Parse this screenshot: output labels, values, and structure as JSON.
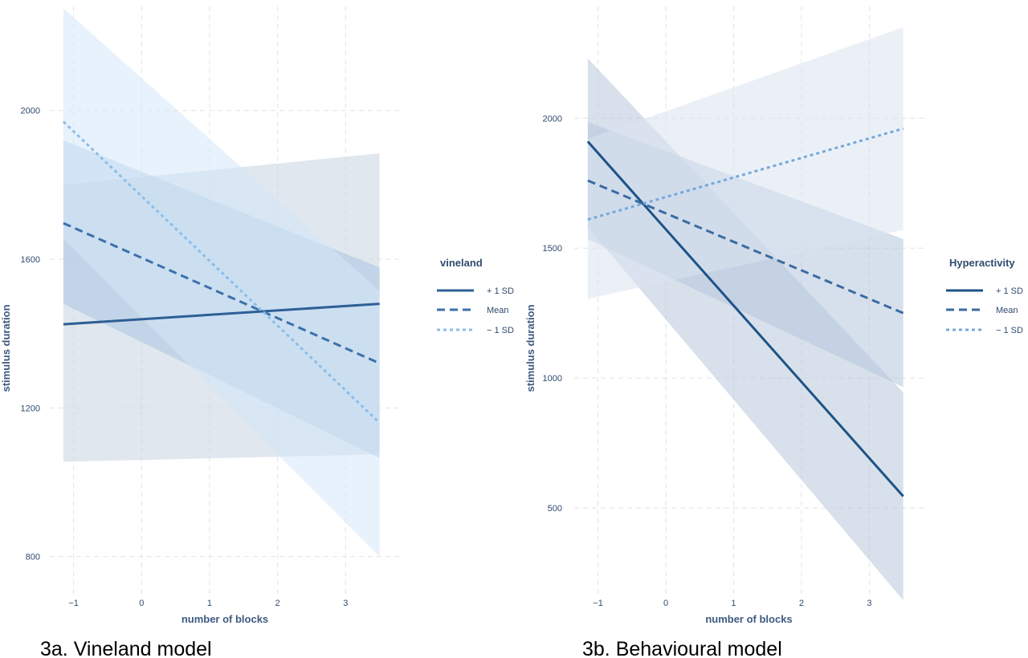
{
  "chart_data": [
    {
      "type": "line",
      "caption": "3a. Vineland model",
      "xlabel": "number of blocks",
      "ylabel": "stimulus duration",
      "x_ticks": [
        -1,
        0,
        1,
        2,
        3
      ],
      "y_ticks": [
        800,
        1200,
        1600,
        2000
      ],
      "xlim": [
        -1.35,
        3.8
      ],
      "ylim": [
        700,
        2280
      ],
      "grid": true,
      "legend": {
        "title": "vineland",
        "position": "right"
      },
      "series": [
        {
          "name": "+ 1 SD",
          "style": "solid",
          "color": "#2e5f95",
          "band_color": "#c8d3e0",
          "x": [
            -1.15,
            3.5
          ],
          "y": [
            1425,
            1480
          ],
          "lower": [
            1055,
            1075
          ],
          "upper": [
            1800,
            1885
          ]
        },
        {
          "name": "Mean",
          "style": "dashed",
          "color": "#3c70aa",
          "band_color": "#a9c4e2",
          "x": [
            -1.15,
            3.5
          ],
          "y": [
            1697,
            1320
          ],
          "lower": [
            1480,
            1065
          ],
          "upper": [
            1920,
            1578
          ]
        },
        {
          "name": "− 1 SD",
          "style": "dotted",
          "color": "#8cbde8",
          "band_color": "#d3e7fa",
          "x": [
            -1.15,
            3.5
          ],
          "y": [
            1970,
            1160
          ],
          "lower": [
            1655,
            800
          ],
          "upper": [
            2275,
            1515
          ]
        }
      ]
    },
    {
      "type": "line",
      "caption": "3b. Behavioural model",
      "xlabel": "number of blocks",
      "ylabel": "stimulus duration",
      "x_ticks": [
        -1,
        0,
        1,
        2,
        3
      ],
      "y_ticks": [
        500,
        1000,
        1500,
        2000
      ],
      "xlim": [
        -1.35,
        3.8
      ],
      "ylim": [
        170,
        2430
      ],
      "grid": true,
      "legend": {
        "title": "Hyperactivity",
        "position": "right"
      },
      "series": [
        {
          "name": "+ 1 SD",
          "style": "solid",
          "color": "#1f5288",
          "band_color": "#b8c9da",
          "x": [
            -1.15,
            3.5
          ],
          "y": [
            1910,
            545
          ],
          "lower": [
            1580,
            145
          ],
          "upper": [
            2230,
            945
          ]
        },
        {
          "name": "Mean",
          "style": "dashed",
          "color": "#3a6ba3",
          "band_color": "#b4c6dc",
          "x": [
            -1.15,
            3.5
          ],
          "y": [
            1760,
            1250
          ],
          "lower": [
            1535,
            965
          ],
          "upper": [
            1985,
            1535
          ]
        },
        {
          "name": "− 1 SD",
          "style": "dotted",
          "color": "#74a9dc",
          "band_color": "#dbe4f1",
          "x": [
            -1.15,
            3.5
          ],
          "y": [
            1610,
            1960
          ],
          "lower": [
            1305,
            1570
          ],
          "upper": [
            1920,
            2350
          ]
        }
      ]
    }
  ]
}
